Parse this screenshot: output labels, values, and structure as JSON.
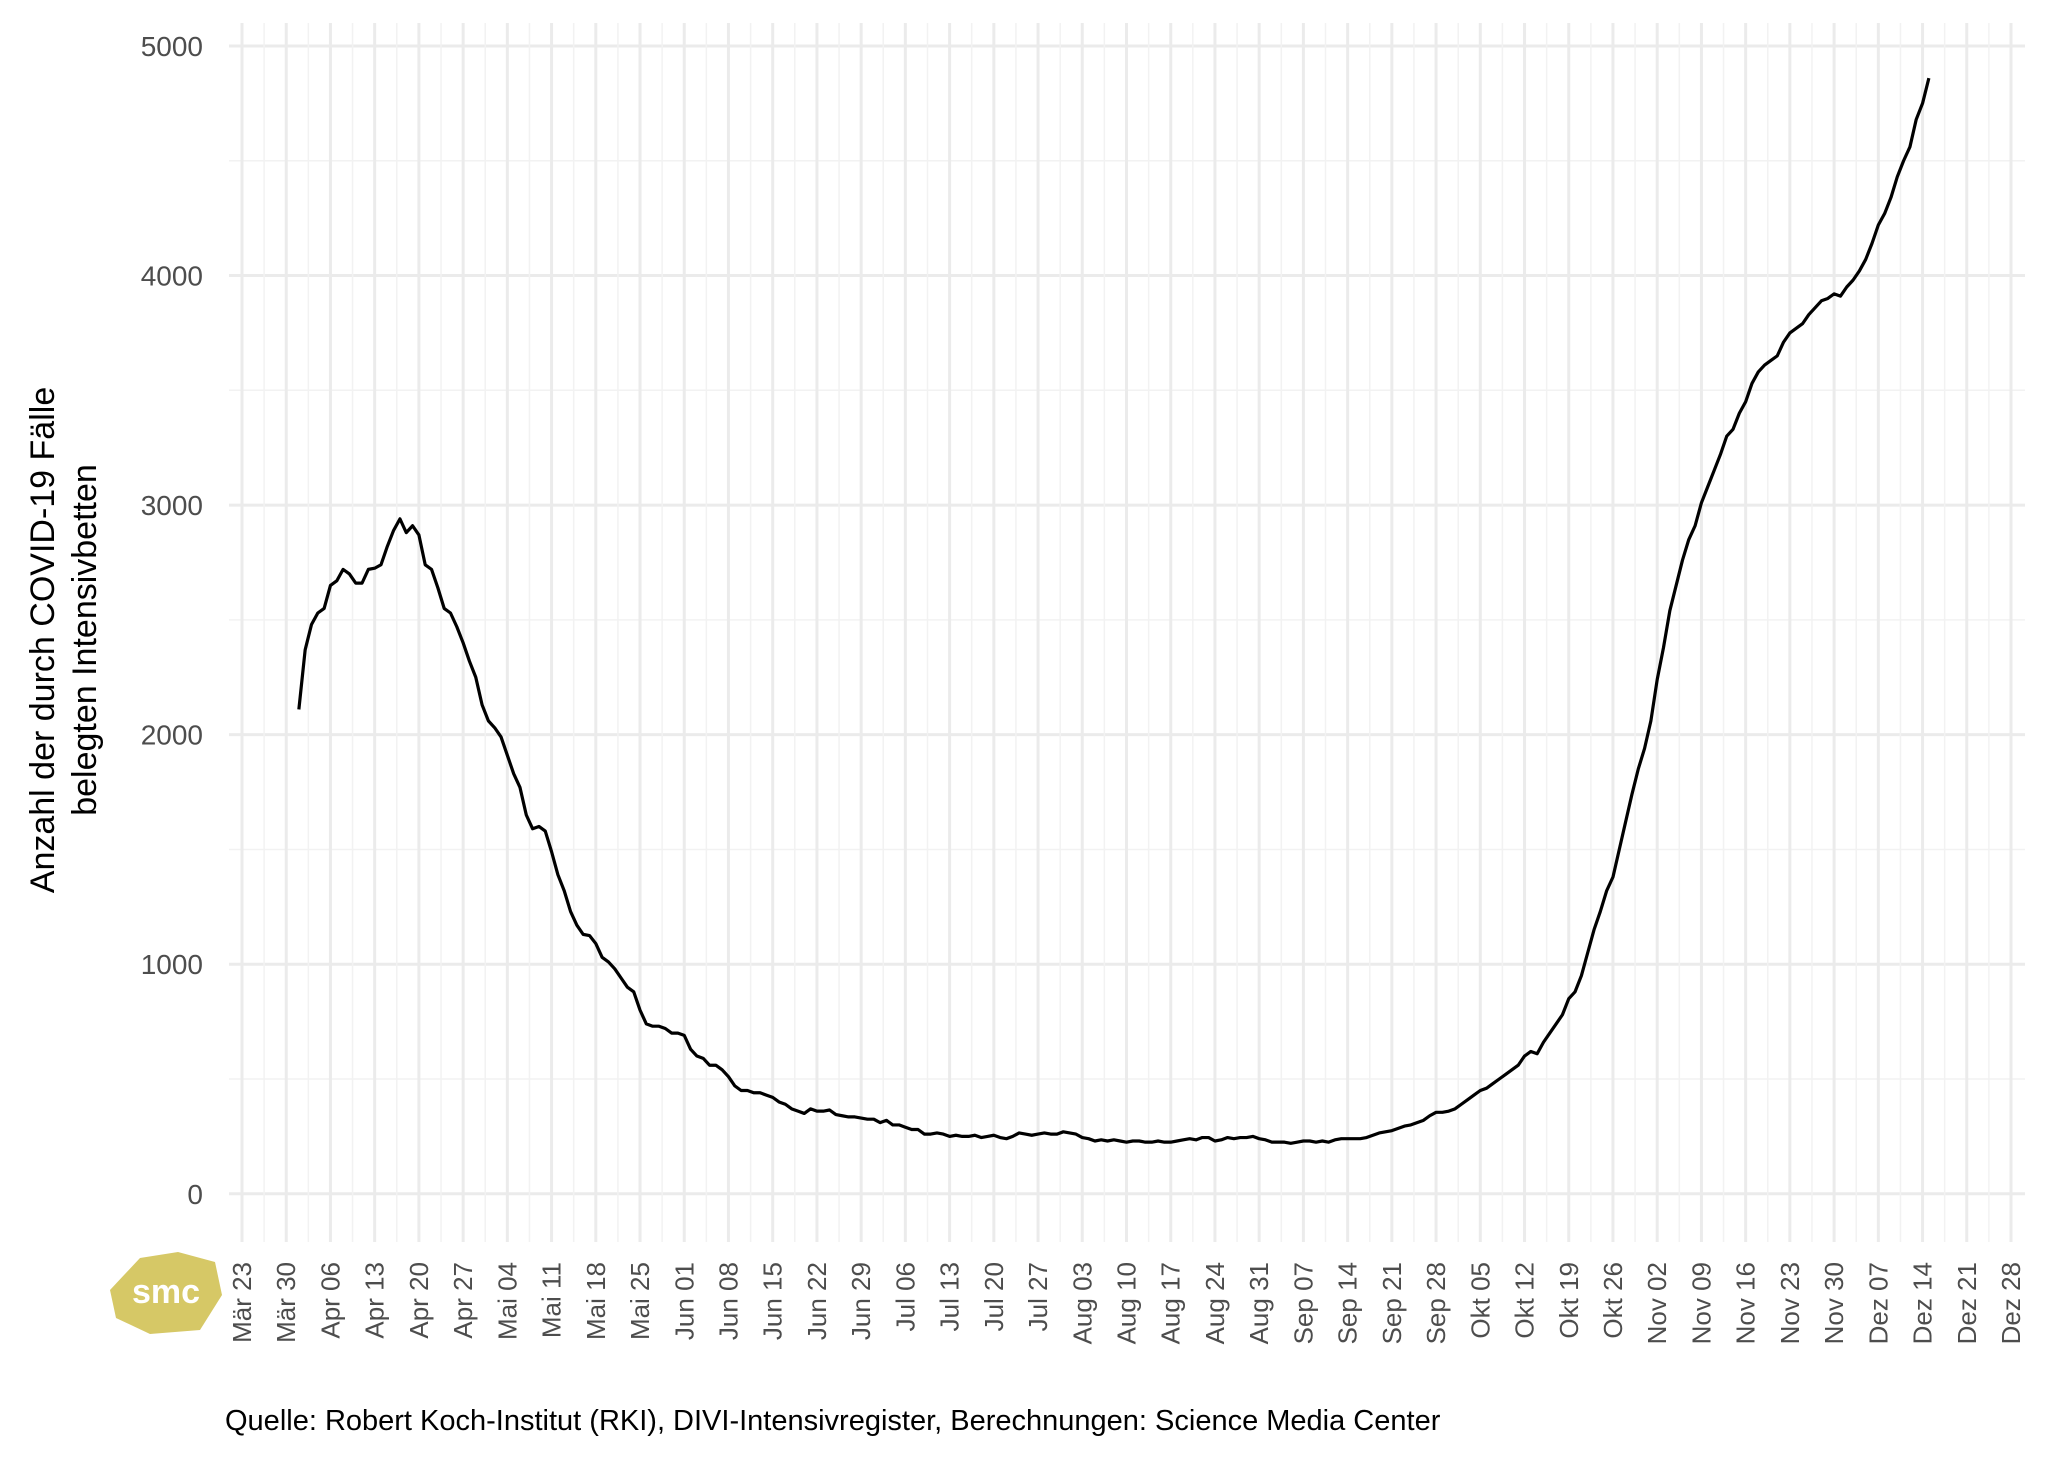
{
  "chart_data": {
    "type": "line",
    "ylabel": [
      "Anzahl der durch COVID-19 Fälle",
      "belegten Intensivbetten"
    ],
    "caption": "Quelle: Robert Koch-Institut (RKI), DIVI-Intensivregister, Berechnungen: Science Media Center",
    "logo": "smc",
    "color": "#000000",
    "grid": true,
    "ylim": [
      -210,
      5100
    ],
    "yticks": [
      0,
      1000,
      2000,
      3000,
      4000,
      5000
    ],
    "xticks": [
      "Mär 23",
      "Mär 30",
      "Apr 06",
      "Apr 13",
      "Apr 20",
      "Apr 27",
      "Mai 04",
      "Mai 11",
      "Mai 18",
      "Mai 25",
      "Jun 01",
      "Jun 08",
      "Jun 15",
      "Jun 22",
      "Jun 29",
      "Jul 06",
      "Jul 13",
      "Jul 20",
      "Jul 27",
      "Aug 03",
      "Aug 10",
      "Aug 17",
      "Aug 24",
      "Aug 31",
      "Sep 07",
      "Sep 14",
      "Sep 21",
      "Sep 28",
      "Okt 05",
      "Okt 12",
      "Okt 19",
      "Okt 26",
      "Nov 02",
      "Nov 09",
      "Nov 16",
      "Nov 23",
      "Nov 30",
      "Dez 07",
      "Dez 14",
      "Dez 21",
      "Dez 28"
    ],
    "x": [
      "Apr 01",
      "Apr 02",
      "Apr 03",
      "Apr 04",
      "Apr 05",
      "Apr 06",
      "Apr 07",
      "Apr 08",
      "Apr 09",
      "Apr 10",
      "Apr 11",
      "Apr 12",
      "Apr 13",
      "Apr 14",
      "Apr 15",
      "Apr 16",
      "Apr 17",
      "Apr 18",
      "Apr 19",
      "Apr 20",
      "Apr 21",
      "Apr 22",
      "Apr 23",
      "Apr 24",
      "Apr 25",
      "Apr 26",
      "Apr 27",
      "Apr 28",
      "Apr 29",
      "Apr 30",
      "Mai 01",
      "Mai 02",
      "Mai 03",
      "Mai 04",
      "Mai 05",
      "Mai 06",
      "Mai 07",
      "Mai 08",
      "Mai 09",
      "Mai 10",
      "Mai 11",
      "Mai 12",
      "Mai 13",
      "Mai 14",
      "Mai 15",
      "Mai 16",
      "Mai 17",
      "Mai 18",
      "Mai 19",
      "Mai 20",
      "Mai 21",
      "Mai 22",
      "Mai 23",
      "Mai 24",
      "Mai 25",
      "Mai 26",
      "Mai 27",
      "Mai 28",
      "Mai 29",
      "Mai 30",
      "Mai 31",
      "Jun 01",
      "Jun 02",
      "Jun 03",
      "Jun 04",
      "Jun 05",
      "Jun 06",
      "Jun 07",
      "Jun 08",
      "Jun 09",
      "Jun 10",
      "Jun 11",
      "Jun 12",
      "Jun 13",
      "Jun 14",
      "Jun 15",
      "Jun 16",
      "Jun 17",
      "Jun 18",
      "Jun 19",
      "Jun 20",
      "Jun 21",
      "Jun 22",
      "Jun 23",
      "Jun 24",
      "Jun 25",
      "Jun 26",
      "Jun 27",
      "Jun 28",
      "Jun 29",
      "Jun 30",
      "Jul 01",
      "Jul 02",
      "Jul 03",
      "Jul 04",
      "Jul 05",
      "Jul 06",
      "Jul 07",
      "Jul 08",
      "Jul 09",
      "Jul 10",
      "Jul 11",
      "Jul 12",
      "Jul 13",
      "Jul 14",
      "Jul 15",
      "Jul 16",
      "Jul 17",
      "Jul 18",
      "Jul 19",
      "Jul 20",
      "Jul 21",
      "Jul 22",
      "Jul 23",
      "Jul 24",
      "Jul 25",
      "Jul 26",
      "Jul 27",
      "Jul 28",
      "Jul 29",
      "Jul 30",
      "Jul 31",
      "Aug 01",
      "Aug 02",
      "Aug 03",
      "Aug 04",
      "Aug 05",
      "Aug 06",
      "Aug 07",
      "Aug 08",
      "Aug 09",
      "Aug 10",
      "Aug 11",
      "Aug 12",
      "Aug 13",
      "Aug 14",
      "Aug 15",
      "Aug 16",
      "Aug 17",
      "Aug 18",
      "Aug 19",
      "Aug 20",
      "Aug 21",
      "Aug 22",
      "Aug 23",
      "Aug 24",
      "Aug 25",
      "Aug 26",
      "Aug 27",
      "Aug 28",
      "Aug 29",
      "Aug 30",
      "Aug 31",
      "Sep 01",
      "Sep 02",
      "Sep 03",
      "Sep 04",
      "Sep 05",
      "Sep 06",
      "Sep 07",
      "Sep 08",
      "Sep 09",
      "Sep 10",
      "Sep 11",
      "Sep 12",
      "Sep 13",
      "Sep 14",
      "Sep 15",
      "Sep 16",
      "Sep 17",
      "Sep 18",
      "Sep 19",
      "Sep 20",
      "Sep 21",
      "Sep 22",
      "Sep 23",
      "Sep 24",
      "Sep 25",
      "Sep 26",
      "Sep 27",
      "Sep 28",
      "Sep 29",
      "Sep 30",
      "Okt 01",
      "Okt 02",
      "Okt 03",
      "Okt 04",
      "Okt 05",
      "Okt 06",
      "Okt 07",
      "Okt 08",
      "Okt 09",
      "Okt 10",
      "Okt 11",
      "Okt 12",
      "Okt 13",
      "Okt 14",
      "Okt 15",
      "Okt 16",
      "Okt 17",
      "Okt 18",
      "Okt 19",
      "Okt 20",
      "Okt 21",
      "Okt 22",
      "Okt 23",
      "Okt 24",
      "Okt 25",
      "Okt 26",
      "Okt 27",
      "Okt 28",
      "Okt 29",
      "Okt 30",
      "Okt 31",
      "Nov 01",
      "Nov 02",
      "Nov 03",
      "Nov 04",
      "Nov 05",
      "Nov 06",
      "Nov 07",
      "Nov 08",
      "Nov 09",
      "Nov 10",
      "Nov 11",
      "Nov 12",
      "Nov 13",
      "Nov 14",
      "Nov 15",
      "Nov 16",
      "Nov 17",
      "Nov 18",
      "Nov 19",
      "Nov 20",
      "Nov 21",
      "Nov 22",
      "Nov 23",
      "Nov 24",
      "Nov 25",
      "Nov 26",
      "Nov 27",
      "Nov 28",
      "Nov 29",
      "Nov 30",
      "Dez 01",
      "Dez 02",
      "Dez 03",
      "Dez 04",
      "Dez 05",
      "Dez 06",
      "Dez 07",
      "Dez 08",
      "Dez 09",
      "Dez 10",
      "Dez 11",
      "Dez 12",
      "Dez 13",
      "Dez 14",
      "Dez 15"
    ],
    "values": [
      2110,
      2370,
      2480,
      2530,
      2550,
      2650,
      2670,
      2720,
      2700,
      2660,
      2660,
      2720,
      2725,
      2740,
      2820,
      2890,
      2940,
      2880,
      2910,
      2870,
      2740,
      2720,
      2640,
      2550,
      2530,
      2470,
      2400,
      2320,
      2250,
      2130,
      2060,
      2030,
      1990,
      1910,
      1830,
      1770,
      1650,
      1590,
      1600,
      1580,
      1490,
      1390,
      1320,
      1230,
      1170,
      1130,
      1125,
      1090,
      1030,
      1010,
      980,
      940,
      900,
      880,
      800,
      740,
      730,
      730,
      720,
      700,
      700,
      690,
      630,
      600,
      590,
      560,
      560,
      540,
      510,
      470,
      450,
      450,
      440,
      440,
      430,
      420,
      400,
      390,
      370,
      360,
      350,
      370,
      360,
      360,
      365,
      345,
      340,
      335,
      335,
      330,
      325,
      325,
      310,
      320,
      300,
      300,
      290,
      280,
      280,
      260,
      260,
      265,
      260,
      250,
      255,
      250,
      250,
      255,
      245,
      250,
      255,
      245,
      240,
      250,
      265,
      260,
      255,
      260,
      265,
      260,
      260,
      270,
      265,
      260,
      245,
      240,
      230,
      235,
      230,
      235,
      230,
      225,
      230,
      230,
      225,
      225,
      230,
      225,
      225,
      230,
      235,
      240,
      235,
      245,
      245,
      230,
      235,
      245,
      240,
      245,
      245,
      250,
      240,
      235,
      225,
      225,
      225,
      220,
      225,
      230,
      230,
      225,
      230,
      225,
      235,
      240,
      240,
      240,
      240,
      245,
      255,
      265,
      270,
      275,
      285,
      295,
      300,
      310,
      320,
      340,
      355,
      355,
      360,
      370,
      390,
      410,
      430,
      450,
      460,
      480,
      500,
      520,
      540,
      560,
      600,
      620,
      610,
      660,
      700,
      740,
      780,
      850,
      880,
      950,
      1050,
      1150,
      1230,
      1320,
      1380,
      1500,
      1620,
      1740,
      1850,
      1940,
      2060,
      2240,
      2380,
      2540,
      2650,
      2760,
      2850,
      2910,
      3010,
      3080,
      3150,
      3220,
      3300,
      3330,
      3400,
      3450,
      3530,
      3580,
      3610,
      3630,
      3650,
      3710,
      3750,
      3770,
      3790,
      3830,
      3860,
      3890,
      3900,
      3920,
      3910,
      3950,
      3980,
      4020,
      4070,
      4140,
      4220,
      4270,
      4340,
      4430,
      4500,
      4560,
      4680,
      4750,
      4860
    ]
  }
}
